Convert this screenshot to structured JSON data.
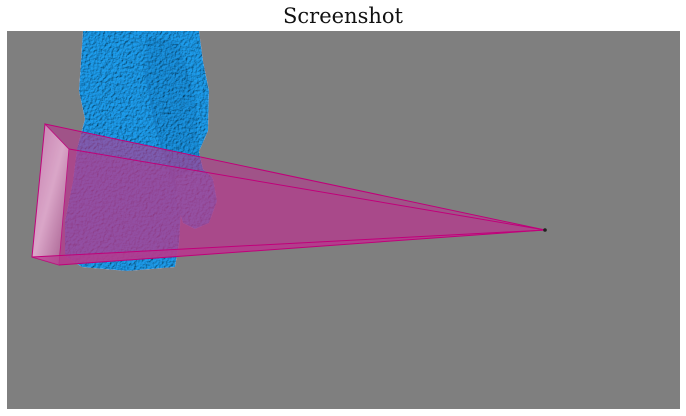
{
  "window": {
    "title": "Screenshot"
  },
  "scene": {
    "background_color": "#7f7f7f",
    "figure_color": "#1e9ff0",
    "frustum_color": "#b53a8e",
    "frustum_edge_color": "#c0007a"
  }
}
